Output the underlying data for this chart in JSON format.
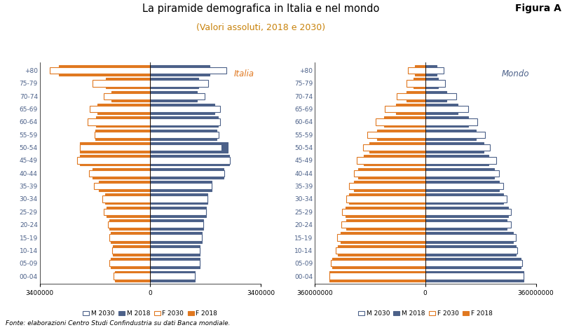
{
  "title": "La piramide demografica in Italia e nel mondo",
  "subtitle": "(Valori assoluti, 2018 e 2030)",
  "fonte": "Fonte: elaborazioni Centro Studi Confindustria su dati Banca mondiale.",
  "figura": "Figura A",
  "age_labels": [
    "00-04",
    "05-09",
    "10-14",
    "15-19",
    "20-24",
    "25-29",
    "30-34",
    "35-39",
    "40-44",
    "45-49",
    "50-54",
    "55-59",
    "60-64",
    "65-69",
    "70-74",
    "75-79",
    "+80"
  ],
  "italia": {
    "label": "Italia",
    "xlim": 3400000,
    "M2018": [
      1380000,
      1520000,
      1530000,
      1580000,
      1620000,
      1710000,
      1760000,
      1880000,
      2250000,
      2430000,
      2380000,
      2030000,
      2080000,
      1980000,
      1430000,
      1480000,
      1820000
    ],
    "M2030": [
      1380000,
      1520000,
      1530000,
      1580000,
      1620000,
      1710000,
      1760000,
      1880000,
      2280000,
      2450000,
      2200000,
      2100000,
      2150000,
      2150000,
      1680000,
      1780000,
      2350000
    ],
    "F2018": [
      1080000,
      1220000,
      1150000,
      1220000,
      1260000,
      1340000,
      1380000,
      1580000,
      1780000,
      2170000,
      2170000,
      1690000,
      1670000,
      1620000,
      1200000,
      1360000,
      2820000
    ],
    "F2030": [
      1120000,
      1250000,
      1180000,
      1260000,
      1300000,
      1420000,
      1470000,
      1730000,
      1880000,
      2240000,
      2160000,
      1720000,
      1920000,
      1870000,
      1440000,
      1780000,
      3100000
    ]
  },
  "mondo": {
    "label": "Mondo",
    "xlim": 360000000,
    "M2018": [
      320000000,
      310000000,
      295000000,
      285000000,
      265000000,
      270000000,
      255000000,
      240000000,
      225000000,
      205000000,
      190000000,
      165000000,
      140000000,
      105000000,
      68000000,
      42000000,
      37000000
    ],
    "M2030": [
      320000000,
      315000000,
      300000000,
      295000000,
      280000000,
      280000000,
      265000000,
      255000000,
      240000000,
      230000000,
      210000000,
      195000000,
      170000000,
      140000000,
      100000000,
      65000000,
      60000000
    ],
    "F2018": [
      312000000,
      302000000,
      285000000,
      275000000,
      258000000,
      260000000,
      248000000,
      232000000,
      218000000,
      200000000,
      183000000,
      158000000,
      133000000,
      95000000,
      60000000,
      38000000,
      34000000
    ],
    "F2030": [
      312000000,
      308000000,
      292000000,
      287000000,
      273000000,
      272000000,
      258000000,
      248000000,
      233000000,
      222000000,
      203000000,
      188000000,
      162000000,
      132000000,
      92000000,
      62000000,
      57000000
    ]
  },
  "color_M2030": "#FFFFFF",
  "color_M2018": "#4C6189",
  "color_F2030": "#FFFFFF",
  "color_F2018": "#E07820",
  "edgecolor_M2030": "#4C6189",
  "edgecolor_M2018": "#4C6189",
  "edgecolor_F2030": "#E07820",
  "edgecolor_F2018": "#E07820",
  "bar_height": 0.82,
  "italia_label_color": "#E07820",
  "mondo_label_color": "#4C6189"
}
